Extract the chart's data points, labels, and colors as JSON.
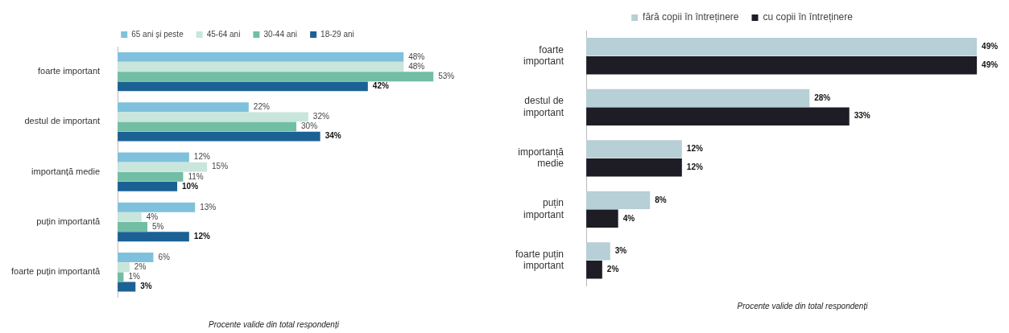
{
  "chart_data": [
    {
      "type": "bar",
      "orientation": "horizontal",
      "legend": "top",
      "grid": false,
      "categories": [
        "foarte important",
        "destul de important",
        "importanță medie",
        "puțin importantă",
        "foarte puțin importantă"
      ],
      "series": [
        {
          "name": "65 ani și peste",
          "color": "#7fc1dc",
          "values": [
            48,
            22,
            12,
            13,
            6
          ],
          "value_labels": [
            "48%",
            "22%",
            "12%",
            "13%",
            "6%"
          ]
        },
        {
          "name": "45-64 ani",
          "color": "#c8e6dc",
          "values": [
            48,
            32,
            15,
            4,
            2
          ],
          "value_labels": [
            "48%",
            "32%",
            "15%",
            "4%",
            "2%"
          ]
        },
        {
          "name": "30-44 ani",
          "color": "#72bea5",
          "values": [
            53,
            30,
            11,
            5,
            1
          ],
          "value_labels": [
            "53%",
            "30%",
            "11%",
            "5%",
            "1%"
          ]
        },
        {
          "name": "18-29 ani",
          "color": "#1c6194",
          "values": [
            42,
            34,
            10,
            12,
            3
          ],
          "value_labels": [
            "42%",
            "34%",
            "10%",
            "12%",
            "3%"
          ]
        }
      ],
      "annotations": [
        "Procente valide din total respondenți"
      ]
    },
    {
      "type": "bar",
      "orientation": "horizontal",
      "legend": "top",
      "grid": false,
      "categories": [
        "foarte important",
        "destul de important",
        "importanță medie",
        "puțin important",
        "foarte puțin important"
      ],
      "series": [
        {
          "name": "fără copii în întreținere",
          "color": "#b7cfd6",
          "values": [
            49,
            28,
            12,
            8,
            3
          ],
          "value_labels": [
            "49%",
            "28%",
            "12%",
            "8%",
            "3%"
          ]
        },
        {
          "name": "cu copii în întreținere",
          "color": "#1e1c24",
          "values": [
            49,
            33,
            12,
            4,
            2
          ],
          "value_labels": [
            "49%",
            "33%",
            "12%",
            "4%",
            "2%"
          ]
        }
      ],
      "annotations": [
        "Procente valide din total respondenți"
      ]
    }
  ]
}
